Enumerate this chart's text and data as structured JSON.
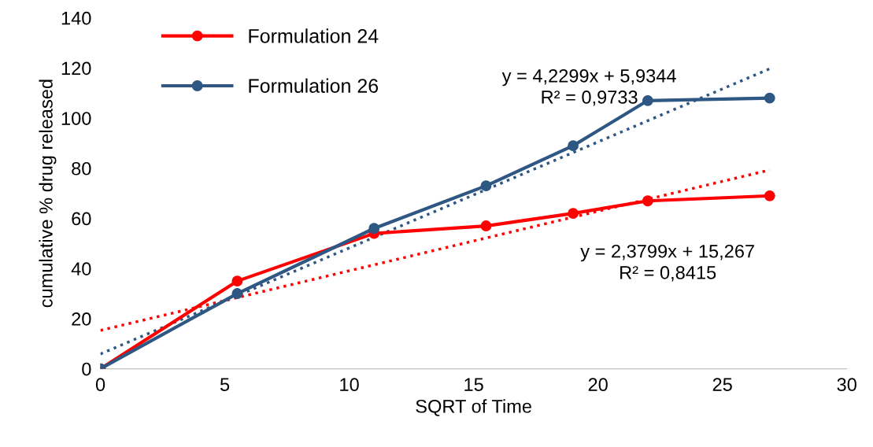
{
  "chart_data": {
    "type": "line",
    "xlabel": "SQRT of Time",
    "ylabel": "cumulative % drug released",
    "xlim": [
      0,
      30
    ],
    "xticks": [
      0,
      5,
      10,
      15,
      20,
      25,
      30
    ],
    "ylim": [
      0,
      140
    ],
    "yticks": [
      0,
      20,
      40,
      60,
      80,
      100,
      120,
      140
    ],
    "grid": false,
    "legend": "top left",
    "marker": "circle",
    "series": [
      {
        "name": "Formulation 24",
        "color": "#ff0000",
        "x": [
          0,
          5.5,
          11,
          15.5,
          19,
          22,
          26.9
        ],
        "values": [
          0,
          35,
          54,
          57,
          62,
          67,
          69
        ]
      },
      {
        "name": "Formulation 26",
        "color": "#2e5783",
        "x": [
          0,
          5.5,
          11,
          15.5,
          19,
          22,
          26.9
        ],
        "values": [
          0,
          30,
          56,
          73,
          89,
          107,
          108
        ]
      },
      {
        "type": "line",
        "color": "#ff0000",
        "line_style": "dotted",
        "marker": "none",
        "x": [
          0,
          26.9
        ],
        "values": [
          15.3,
          79.3
        ]
      },
      {
        "type": "line",
        "color": "#2e5783",
        "line_style": "dotted",
        "marker": "none",
        "x": [
          0,
          26.9
        ],
        "values": [
          5.9,
          119.7
        ]
      }
    ],
    "annotations": [
      "y = 2,3799x + 15,267\nR² = 0,8415",
      "y = 4,2299x + 5,9344\nR² = 0,9733"
    ]
  }
}
